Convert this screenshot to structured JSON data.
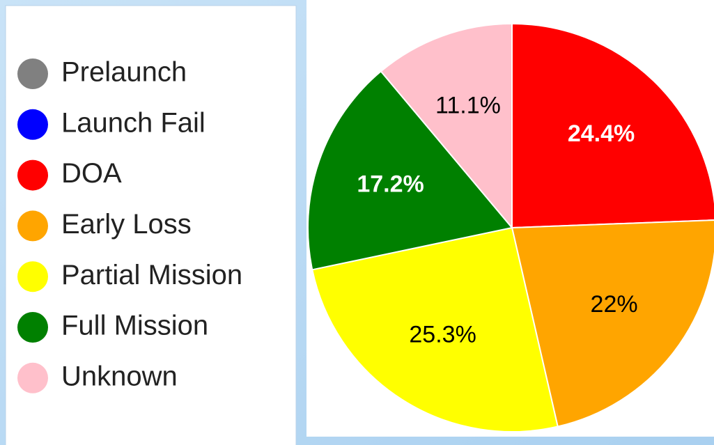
{
  "chart_data": {
    "type": "pie",
    "categories": [
      "Prelaunch",
      "Launch Fail",
      "DOA",
      "Early Loss",
      "Partial Mission",
      "Full Mission",
      "Unknown"
    ],
    "values": [
      0,
      0,
      24.4,
      22,
      25.3,
      17.2,
      11.1
    ],
    "value_labels": [
      null,
      null,
      "24.4%",
      "22%",
      "25.3%",
      "17.2%",
      "11.1%"
    ],
    "colors": [
      "#808080",
      "#0000ff",
      "#ff0000",
      "#ffa500",
      "#ffff00",
      "#008000",
      "#ffc0cb"
    ],
    "legend": "left"
  }
}
